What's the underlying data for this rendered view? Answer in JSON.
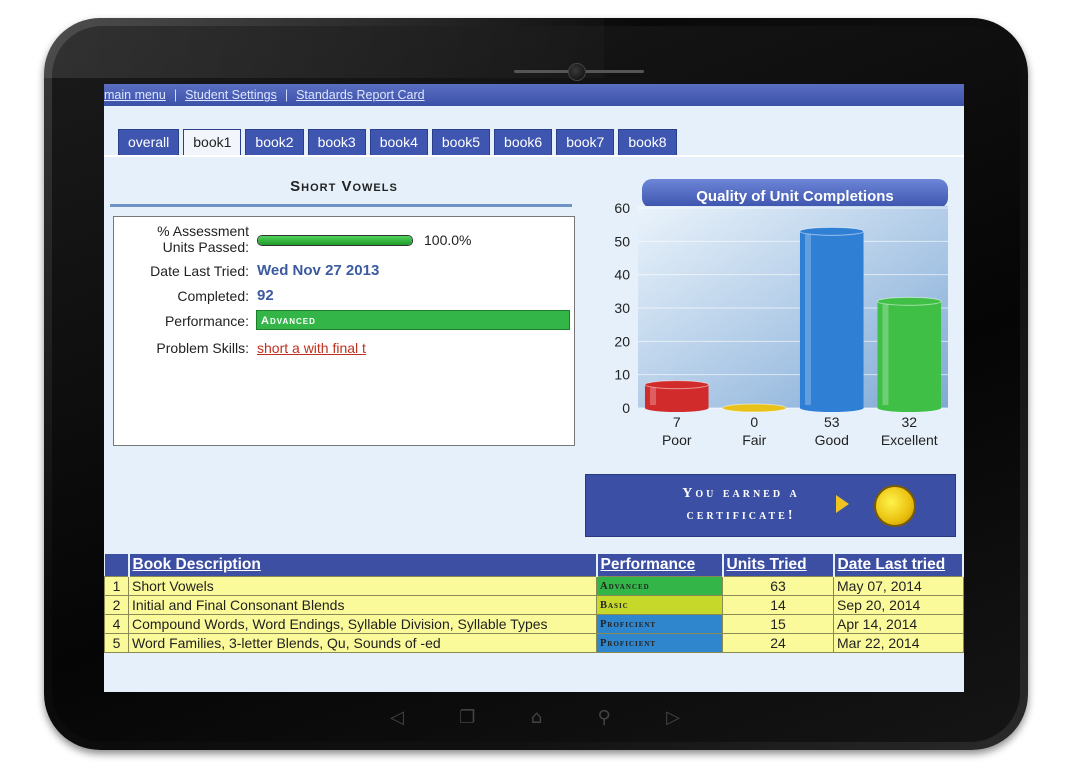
{
  "nav": {
    "main_menu": "main menu",
    "student_settings": "Student Settings",
    "standards_report_card": "Standards Report Card",
    "sep": "|"
  },
  "tabs": [
    {
      "label": "overall",
      "active": false
    },
    {
      "label": "book1",
      "active": true
    },
    {
      "label": "book2",
      "active": false
    },
    {
      "label": "book3",
      "active": false
    },
    {
      "label": "book4",
      "active": false
    },
    {
      "label": "book5",
      "active": false
    },
    {
      "label": "book6",
      "active": false
    },
    {
      "label": "book7",
      "active": false
    },
    {
      "label": "book8",
      "active": false
    }
  ],
  "unit": {
    "title": "Short Vowels",
    "assessment_label_1": "% Assessment",
    "assessment_label_2": "Units Passed:",
    "assessment_value": "100.0%",
    "assessment_fraction": 1.0,
    "date_label": "Date Last Tried:",
    "date_value": "Wed Nov 27 2013",
    "completed_label": "Completed:",
    "completed_value": "92",
    "performance_label": "Performance:",
    "performance_value": "Advanced",
    "performance_color": "#33b548",
    "problem_label": "Problem Skills:",
    "problem_value": "short a with final t"
  },
  "chart_data": {
    "type": "bar",
    "title": "Quality of Unit Completions",
    "categories": [
      "Poor",
      "Fair",
      "Good",
      "Excellent"
    ],
    "values": [
      7,
      0,
      53,
      32
    ],
    "colors": [
      "#d22b2b",
      "#e8c21b",
      "#2f7fd4",
      "#3fbf46"
    ],
    "ylim": [
      0,
      60
    ],
    "yticks": [
      0,
      10,
      20,
      30,
      40,
      50,
      60
    ],
    "grid": true
  },
  "certificate": {
    "line1": "You earned a",
    "line2": "certificate!",
    "play_icon": "play-icon",
    "coin_icon": "coin-icon"
  },
  "table": {
    "headers": [
      "Book Description",
      "Performance",
      "Units Tried",
      "Date Last tried"
    ],
    "rows": [
      {
        "num": "1",
        "desc": "Short Vowels",
        "performance": "Advanced",
        "perf_color": "#33b548",
        "units": "63",
        "date": "May 07, 2014"
      },
      {
        "num": "2",
        "desc": "Initial and Final Consonant Blends",
        "performance": "Basic",
        "perf_color": "#c6d82a",
        "units": "14",
        "date": "Sep 20, 2014"
      },
      {
        "num": "4",
        "desc": "Compound Words, Word Endings, Syllable Division, Syllable Types",
        "performance": "Proficient",
        "perf_color": "#2f86cc",
        "units": "15",
        "date": "Apr 14, 2014"
      },
      {
        "num": "5",
        "desc": "Word Families, 3-letter Blends, Qu, Sounds of -ed",
        "performance": "Proficient",
        "perf_color": "#2f86cc",
        "units": "24",
        "date": "Mar 22, 2014"
      }
    ]
  },
  "device_keys": [
    "back-icon",
    "recent-apps-icon",
    "home-icon",
    "search-icon",
    "menu-icon"
  ]
}
